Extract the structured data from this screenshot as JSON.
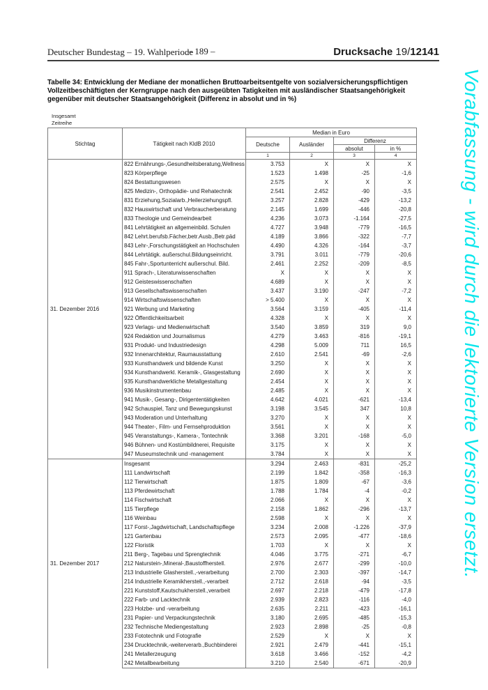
{
  "page": {
    "header_left": "Deutscher Bundestag – 19. Wahlperiode",
    "header_center": "– 189 –",
    "header_right_word": "Drucksache",
    "header_right_num_regular": "19/",
    "header_right_num_bold": "12141"
  },
  "watermark": {
    "text": "Vorabfassung - wird durch die lektorierte Version ersetzt.",
    "color": "#0ae6ec"
  },
  "table": {
    "title_lines": [
      "Tabelle 34: Entwicklung der Mediane der monatlichen Bruttoarbeitsentgelte von sozialversicherungspflichtigen",
      "Vollzeitbeschäftigten der Kerngruppe nach den ausgeübten Tatigkeiten mit ausländischer Staatsangehörigkeit",
      "gegenüber mit deutscher Staatsangehörigkeit (Differenz in absolut und in %)"
    ],
    "pre_labels": [
      "Insgesamt",
      "Zeitreihe"
    ],
    "header": {
      "stichtag": "Stichtag",
      "taetigkeit": "Tätigkeit nach KldB 2010",
      "median_group": "Median in Euro",
      "deutsche": "Deutsche",
      "auslaender": "Ausländer",
      "differenz_group": "Differenz",
      "absolut": "absolut",
      "in_prozent": "in %",
      "column_numbers": [
        "1",
        "2",
        "3",
        "4"
      ]
    },
    "sections": [
      {
        "stichtag": "31. Dezember 2016",
        "rows": [
          [
            "822 Ernährungs-,Gesundheitsberatung,Wellness",
            "3.753",
            "X",
            "X",
            "X"
          ],
          [
            "823 Körperpflege",
            "1.523",
            "1.498",
            "-25",
            "-1,6"
          ],
          [
            "824 Bestattungswesen",
            "2.575",
            "X",
            "X",
            "X"
          ],
          [
            "825 Medizin-, Orthopädie- und Rehatechnik",
            "2.541",
            "2.452",
            "-90",
            "-3,5"
          ],
          [
            "831 Erziehung,Sozialarb.,Heilerziehungspfl.",
            "3.257",
            "2.828",
            "-429",
            "-13,2"
          ],
          [
            "832 Hauswirtschaft und Verbraucherberatung",
            "2.145",
            "1.699",
            "-446",
            "-20,8"
          ],
          [
            "833 Theologie und Gemeindearbeit",
            "4.236",
            "3.073",
            "-1.164",
            "-27,5"
          ],
          [
            "841 Lehrtätigkeit an allgemeinbild. Schulen",
            "4.727",
            "3.948",
            "-779",
            "-16,5"
          ],
          [
            "842 Lehrt.berufsb.Fächer,betr.Ausb.,Betr.päd",
            "4.189",
            "3.866",
            "-322",
            "-7,7"
          ],
          [
            "843 Lehr-,Forschungstätigkeit an Hochschulen",
            "4.490",
            "4.326",
            "-164",
            "-3,7"
          ],
          [
            "844 Lehrtätigk. außerschul.Bildungseinricht.",
            "3.791",
            "3.011",
            "-779",
            "-20,6"
          ],
          [
            "845 Fahr-,Sportunterricht außerschul. Bild.",
            "2.461",
            "2.252",
            "-209",
            "-8,5"
          ],
          [
            "911 Sprach-, Literaturwissenschaften",
            "X",
            "X",
            "X",
            "X"
          ],
          [
            "912 Geisteswissenschaften",
            "4.689",
            "X",
            "X",
            "X"
          ],
          [
            "913 Gesellschaftswissenschaften",
            "3.437",
            "3.190",
            "-247",
            "-7,2"
          ],
          [
            "914 Wirtschaftswissenschaften",
            "> 5.400",
            "X",
            "X",
            "X"
          ],
          [
            "921 Werbung und Marketing",
            "3.564",
            "3.159",
            "-405",
            "-11,4"
          ],
          [
            "922 Öffentlichkeitsarbeit",
            "4.328",
            "X",
            "X",
            "X"
          ],
          [
            "923 Verlags- und Medienwirtschaft",
            "3.540",
            "3.859",
            "319",
            "9,0"
          ],
          [
            "924 Redaktion und Journalismus",
            "4.279",
            "3.463",
            "-816",
            "-19,1"
          ],
          [
            "931 Produkt- und Industriedesign",
            "4.298",
            "5.009",
            "711",
            "16,5"
          ],
          [
            "932 Innenarchitektur, Raumausstattung",
            "2.610",
            "2.541",
            "-69",
            "-2,6"
          ],
          [
            "933 Kunsthandwerk und bildende Kunst",
            "3.250",
            "X",
            "X",
            "X"
          ],
          [
            "934 Kunsthandwerkl. Keramik-, Glasgestaltung",
            "2.690",
            "X",
            "X",
            "X"
          ],
          [
            "935 Kunsthandwerkliche Metallgestaltung",
            "2.454",
            "X",
            "X",
            "X"
          ],
          [
            "936 Musikinstrumentenbau",
            "2.485",
            "X",
            "X",
            "X"
          ],
          [
            "941 Musik-, Gesang-, Dirigententätigkeiten",
            "4.642",
            "4.021",
            "-621",
            "-13,4"
          ],
          [
            "942 Schauspiel, Tanz und Bewegungskunst",
            "3.198",
            "3.545",
            "347",
            "10,8"
          ],
          [
            "943 Moderation und Unterhaltung",
            "3.270",
            "X",
            "X",
            "X"
          ],
          [
            "944 Theater-, Film- und Fernsehproduktion",
            "3.561",
            "X",
            "X",
            "X"
          ],
          [
            "945 Veranstaltungs-, Kamera-, Tontechnik",
            "3.368",
            "3.201",
            "-168",
            "-5,0"
          ],
          [
            "946 Bühnen- und Kostümbildnerei, Requisite",
            "3.175",
            "X",
            "X",
            "X"
          ],
          [
            "947 Museumstechnik und -management",
            "3.784",
            "X",
            "X",
            "X"
          ]
        ]
      },
      {
        "stichtag": "31. Dezember 2017",
        "rows": [
          [
            "Insgesamt",
            "3.294",
            "2.463",
            "-831",
            "-25,2"
          ],
          [
            "111 Landwirtschaft",
            "2.199",
            "1.842",
            "-358",
            "-16,3"
          ],
          [
            "112 Tierwirtschaft",
            "1.875",
            "1.809",
            "-67",
            "-3,6"
          ],
          [
            "113 Pferdewirtschaft",
            "1.788",
            "1.784",
            "-4",
            "-0,2"
          ],
          [
            "114 Fischwirtschaft",
            "2.066",
            "X",
            "X",
            "X"
          ],
          [
            "115 Tierpflege",
            "2.158",
            "1.862",
            "-296",
            "-13,7"
          ],
          [
            "116 Weinbau",
            "2.598",
            "X",
            "X",
            "X"
          ],
          [
            "117 Forst-,Jagdwirtschaft, Landschaftspflege",
            "3.234",
            "2.008",
            "-1.226",
            "-37,9"
          ],
          [
            "121 Gartenbau",
            "2.573",
            "2.095",
            "-477",
            "-18,6"
          ],
          [
            "122 Floristik",
            "1.703",
            "X",
            "X",
            "X"
          ],
          [
            "211 Berg-, Tagebau und Sprengtechnik",
            "4.046",
            "3.775",
            "-271",
            "-6,7"
          ],
          [
            "212 Naturstein-,Mineral-,Baustoffherstell.",
            "2.976",
            "2.677",
            "-299",
            "-10,0"
          ],
          [
            "213 Industrielle Glasherstell.,-verarbeitung",
            "2.700",
            "2.303",
            "-397",
            "-14,7"
          ],
          [
            "214 Industrielle Keramikherstell.,-verarbeit",
            "2.712",
            "2.618",
            "-94",
            "-3,5"
          ],
          [
            "221 Kunststoff,Kautschukherstell.,verarbeit",
            "2.697",
            "2.218",
            "-479",
            "-17,8"
          ],
          [
            "222 Farb- und Lacktechnik",
            "2.939",
            "2.823",
            "-116",
            "-4,0"
          ],
          [
            "223 Holzbe- und -verarbeitung",
            "2.635",
            "2.211",
            "-423",
            "-16,1"
          ],
          [
            "231 Papier- und Verpackungstechnik",
            "3.180",
            "2.695",
            "-485",
            "-15,3"
          ],
          [
            "232 Technische Mediengestaltung",
            "2.923",
            "2.898",
            "-25",
            "-0,8"
          ],
          [
            "233 Fototechnik und Fotografie",
            "2.529",
            "X",
            "X",
            "X"
          ],
          [
            "234 Drucktechnik,-weiterverarb.,Buchbinderei",
            "2.921",
            "2.479",
            "-441",
            "-15,1"
          ],
          [
            "241 Metallerzeugung",
            "3.618",
            "3.466",
            "-152",
            "-4,2"
          ],
          [
            "242 Metallbearbeitung",
            "3.210",
            "2.540",
            "-671",
            "-20,9"
          ]
        ]
      }
    ]
  }
}
